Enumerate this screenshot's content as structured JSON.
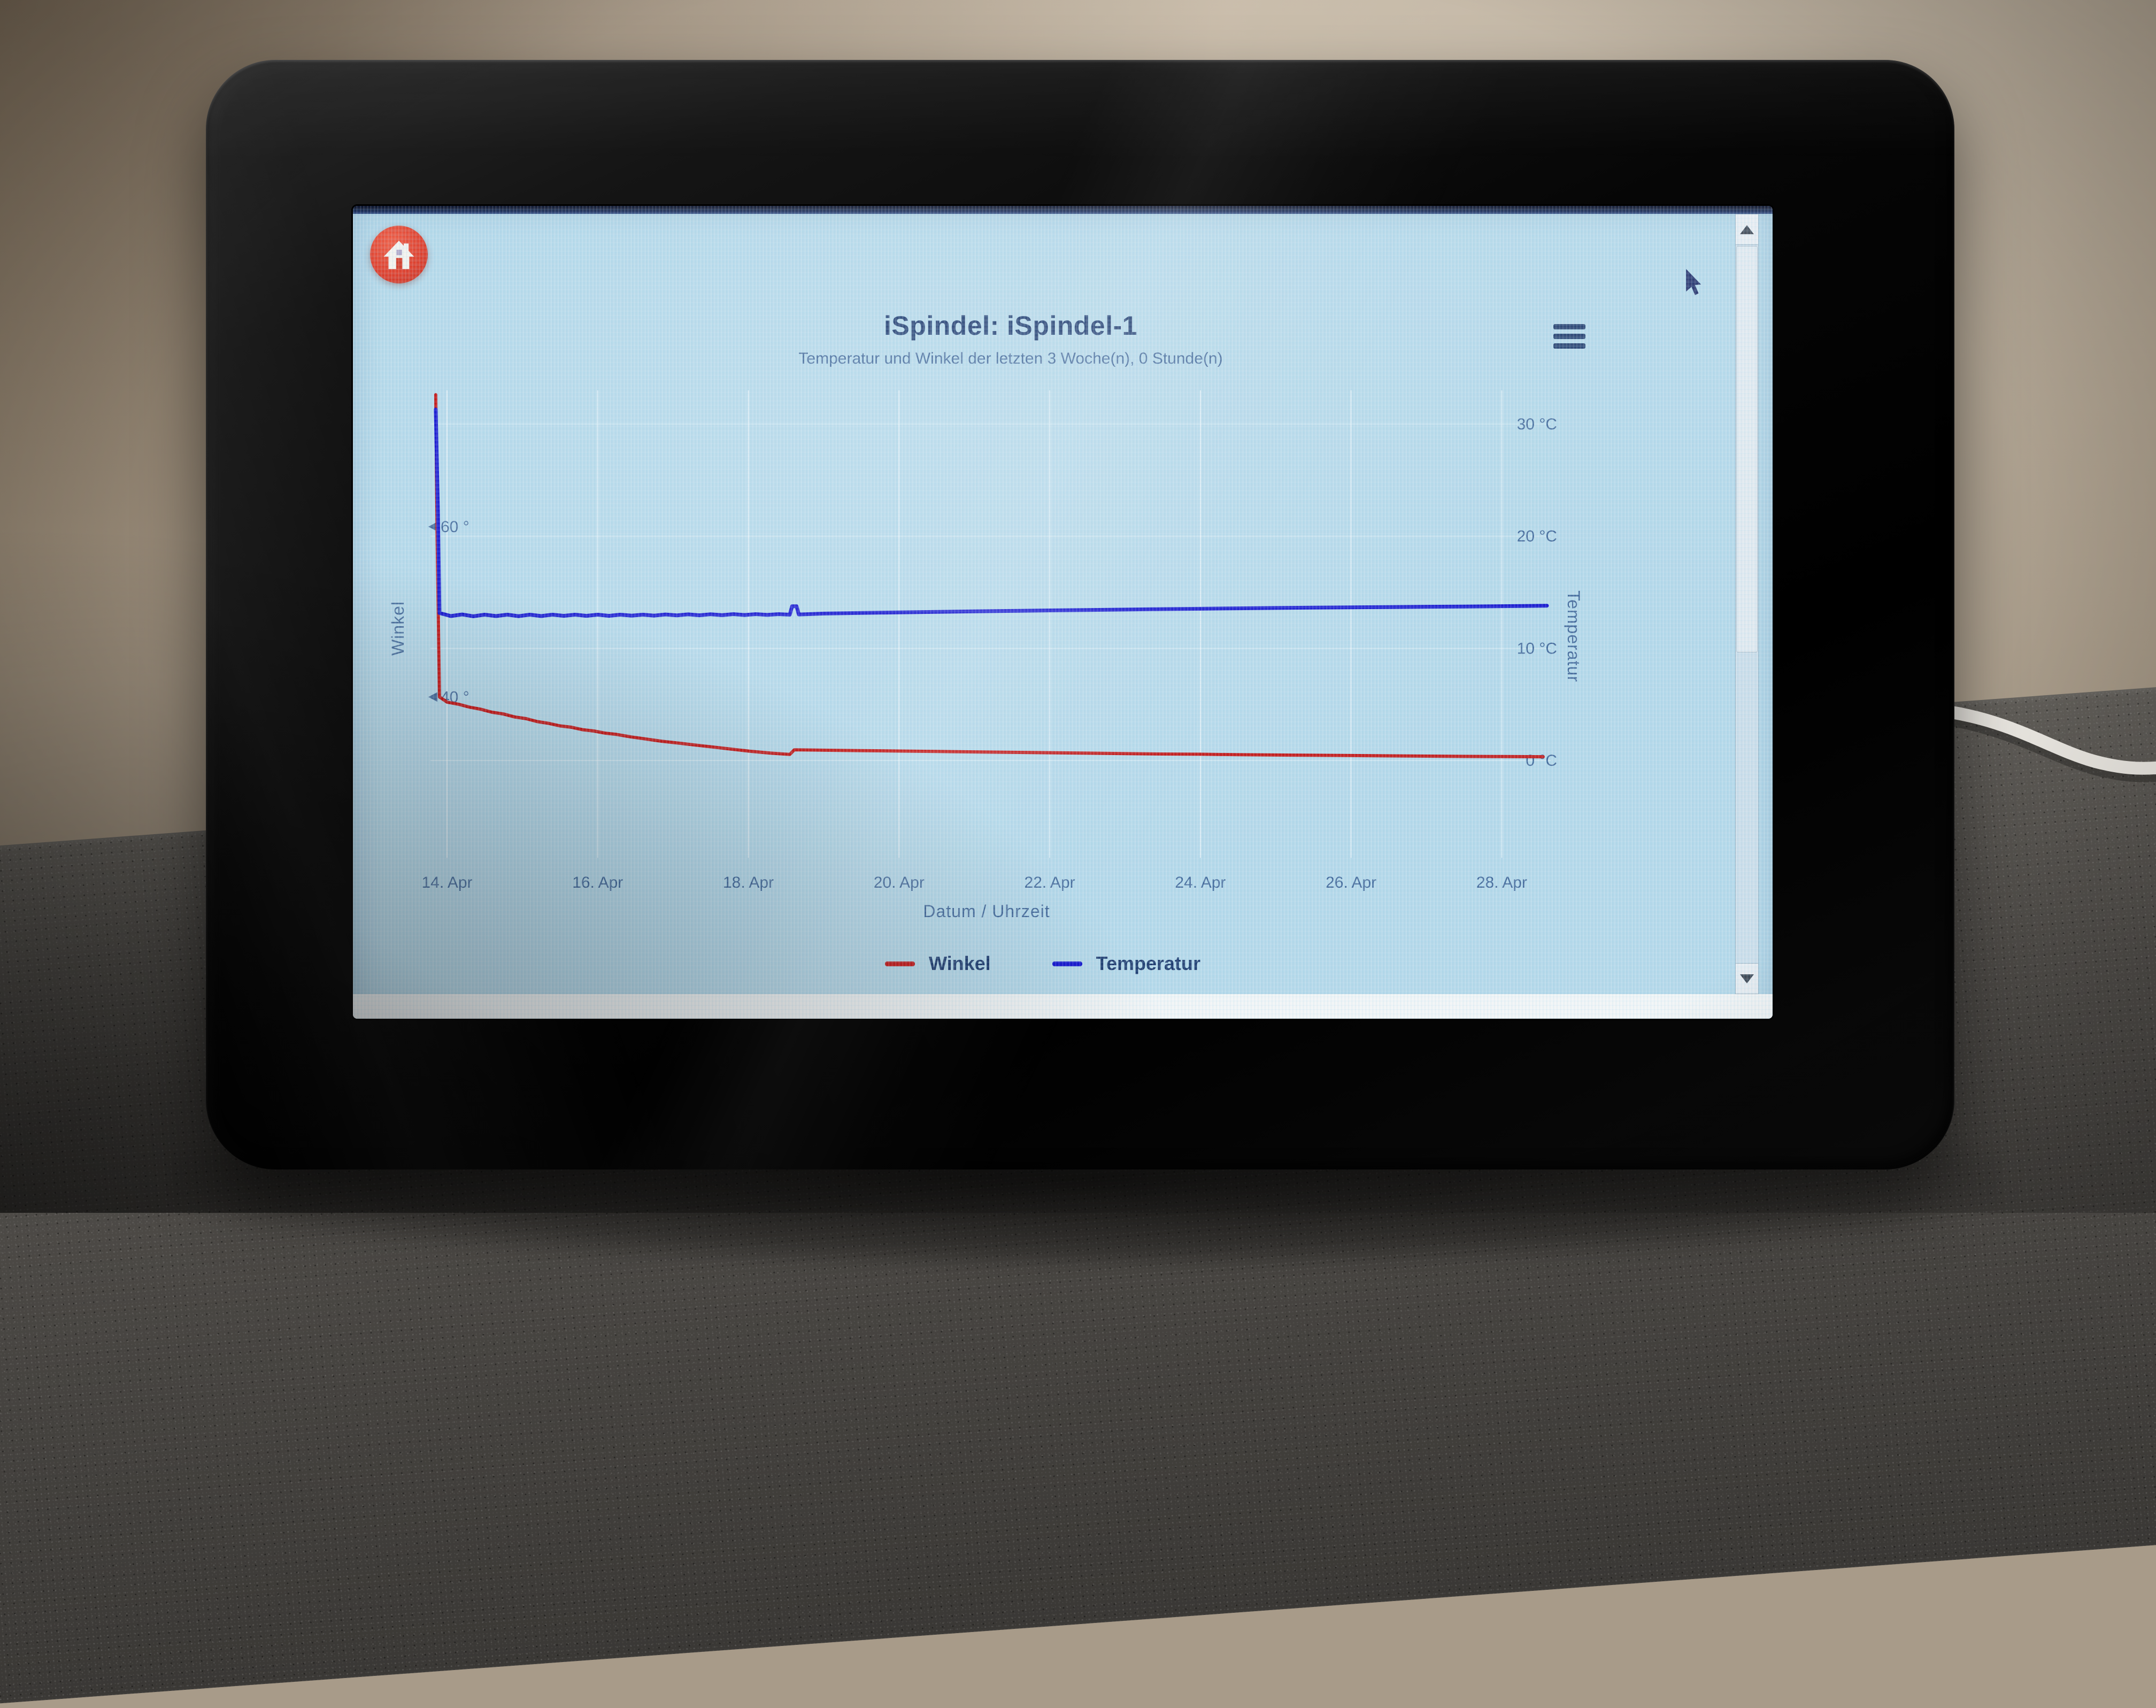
{
  "header": {
    "title": "iSpindel: iSpindel-1",
    "subtitle": "Temperatur und Winkel der letzten 3 Woche(n), 0 Stunde(n)",
    "home_icon": "house-icon",
    "menu_icon": "hamburger-menu-icon"
  },
  "colors": {
    "page_background": "#b5d8e9",
    "title_text": "#1d3a6e",
    "axis_text": "#44699a",
    "winkel_line": "#c31414",
    "temperatur_line": "#1414cf",
    "home_button": "#de3b28"
  },
  "scrollbar": {
    "up_icon": "triangle-up-icon",
    "down_icon": "triangle-down-icon"
  },
  "cursor_icon": "arrow-cursor-icon",
  "chart_data": {
    "type": "line",
    "title": "",
    "xlabel": "Datum / Uhrzeit",
    "ylabel": "Winkel",
    "ylabel_right": "Temperatur",
    "grid": true,
    "legend_position": "bottom",
    "x_tick_labels": [
      "14. Apr",
      "16. Apr",
      "18. Apr",
      "20. Apr",
      "22. Apr",
      "24. Apr",
      "26. Apr",
      "28. Apr"
    ],
    "x_tick_days": [
      14,
      16,
      18,
      20,
      22,
      24,
      26,
      28
    ],
    "x_range_days": [
      13.78,
      28.65
    ],
    "axes": {
      "left": {
        "label": "Winkel",
        "unit": "°",
        "ticks": [
          60,
          40
        ],
        "tick_labels": [
          "60 °",
          "40 °"
        ],
        "range": [
          22,
          76
        ]
      },
      "right": {
        "label": "Temperatur",
        "unit": "°C",
        "ticks": [
          30,
          20,
          10,
          0
        ],
        "tick_labels": [
          "30 °C",
          "20 °C",
          "10 °C",
          "0 °C"
        ],
        "range": [
          -8,
          33
        ]
      }
    },
    "series": [
      {
        "name": "Winkel",
        "axis": "left",
        "color": "#c31414",
        "points": [
          [
            13.85,
            75.5
          ],
          [
            13.87,
            58
          ],
          [
            13.9,
            40.0
          ],
          [
            14.0,
            39.4
          ],
          [
            14.15,
            39.15
          ],
          [
            14.3,
            38.8
          ],
          [
            14.45,
            38.55
          ],
          [
            14.6,
            38.2
          ],
          [
            14.75,
            38.0
          ],
          [
            14.9,
            37.65
          ],
          [
            15.05,
            37.45
          ],
          [
            15.2,
            37.1
          ],
          [
            15.35,
            36.9
          ],
          [
            15.5,
            36.6
          ],
          [
            15.65,
            36.45
          ],
          [
            15.8,
            36.15
          ],
          [
            15.95,
            36.0
          ],
          [
            16.1,
            35.75
          ],
          [
            16.25,
            35.6
          ],
          [
            16.45,
            35.3
          ],
          [
            16.65,
            35.05
          ],
          [
            16.85,
            34.8
          ],
          [
            17.05,
            34.6
          ],
          [
            17.3,
            34.35
          ],
          [
            17.55,
            34.1
          ],
          [
            17.8,
            33.85
          ],
          [
            18.05,
            33.6
          ],
          [
            18.3,
            33.4
          ],
          [
            18.55,
            33.25
          ],
          [
            18.61,
            33.8
          ],
          [
            19.0,
            33.75
          ],
          [
            19.5,
            33.7
          ],
          [
            20.0,
            33.65
          ],
          [
            20.5,
            33.6
          ],
          [
            21.0,
            33.55
          ],
          [
            21.5,
            33.5
          ],
          [
            22.0,
            33.45
          ],
          [
            22.5,
            33.4
          ],
          [
            23.0,
            33.35
          ],
          [
            23.5,
            33.3
          ],
          [
            24.0,
            33.28
          ],
          [
            24.5,
            33.22
          ],
          [
            25.0,
            33.18
          ],
          [
            25.5,
            33.15
          ],
          [
            26.0,
            33.12
          ],
          [
            26.5,
            33.08
          ],
          [
            27.0,
            33.05
          ],
          [
            27.5,
            33.02
          ],
          [
            28.0,
            33.0
          ],
          [
            28.55,
            32.98
          ]
        ]
      },
      {
        "name": "Temperatur",
        "axis": "right",
        "color": "#1414cf",
        "points": [
          [
            13.85,
            31.3
          ],
          [
            13.88,
            22
          ],
          [
            13.9,
            13.15
          ],
          [
            14.05,
            12.88
          ],
          [
            14.2,
            13.02
          ],
          [
            14.35,
            12.86
          ],
          [
            14.5,
            13.0
          ],
          [
            14.65,
            12.88
          ],
          [
            14.8,
            13.0
          ],
          [
            14.95,
            12.87
          ],
          [
            15.1,
            13.0
          ],
          [
            15.25,
            12.88
          ],
          [
            15.4,
            13.0
          ],
          [
            15.55,
            12.9
          ],
          [
            15.7,
            13.0
          ],
          [
            15.85,
            12.9
          ],
          [
            16.0,
            13.0
          ],
          [
            16.15,
            12.9
          ],
          [
            16.3,
            13.0
          ],
          [
            16.45,
            12.92
          ],
          [
            16.6,
            13.0
          ],
          [
            16.75,
            12.92
          ],
          [
            16.9,
            13.02
          ],
          [
            17.05,
            12.94
          ],
          [
            17.2,
            13.03
          ],
          [
            17.35,
            12.95
          ],
          [
            17.5,
            13.04
          ],
          [
            17.65,
            12.96
          ],
          [
            17.8,
            13.05
          ],
          [
            17.95,
            12.97
          ],
          [
            18.1,
            13.05
          ],
          [
            18.25,
            12.98
          ],
          [
            18.4,
            13.05
          ],
          [
            18.55,
            13.0
          ],
          [
            18.58,
            13.75
          ],
          [
            18.64,
            13.75
          ],
          [
            18.67,
            13.02
          ],
          [
            18.8,
            13.05
          ],
          [
            19.0,
            13.1
          ],
          [
            19.5,
            13.16
          ],
          [
            20.0,
            13.2
          ],
          [
            20.5,
            13.25
          ],
          [
            21.0,
            13.3
          ],
          [
            21.5,
            13.34
          ],
          [
            22.0,
            13.38
          ],
          [
            22.5,
            13.42
          ],
          [
            23.0,
            13.46
          ],
          [
            23.5,
            13.5
          ],
          [
            24.0,
            13.53
          ],
          [
            24.5,
            13.57
          ],
          [
            25.0,
            13.6
          ],
          [
            25.5,
            13.63
          ],
          [
            26.0,
            13.66
          ],
          [
            26.5,
            13.68
          ],
          [
            27.0,
            13.71
          ],
          [
            27.5,
            13.73
          ],
          [
            28.0,
            13.76
          ],
          [
            28.3,
            13.78
          ],
          [
            28.6,
            13.8
          ]
        ]
      }
    ]
  }
}
